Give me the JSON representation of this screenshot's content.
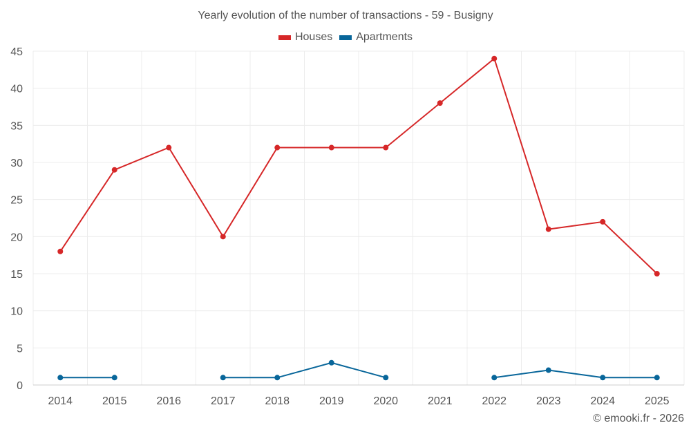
{
  "chart_data": {
    "type": "line",
    "title": "Yearly evolution of the number of transactions - 59 - Busigny",
    "categories": [
      "2014",
      "2015",
      "2016",
      "2017",
      "2018",
      "2019",
      "2020",
      "2021",
      "2022",
      "2023",
      "2024",
      "2025"
    ],
    "series": [
      {
        "name": "Houses",
        "color": "#d62728",
        "values": [
          18,
          29,
          32,
          20,
          32,
          32,
          32,
          38,
          44,
          21,
          22,
          15
        ]
      },
      {
        "name": "Apartments",
        "color": "#08669a",
        "values": [
          1,
          1,
          null,
          1,
          1,
          3,
          1,
          null,
          1,
          2,
          1,
          1
        ]
      }
    ],
    "ylim": [
      0,
      45
    ],
    "yticks": [
      0,
      5,
      10,
      15,
      20,
      25,
      30,
      35,
      40,
      45
    ],
    "xlabel": "",
    "ylabel": "",
    "grid": true,
    "legend_position": "top-center"
  },
  "credit": "© emooki.fr - 2026"
}
